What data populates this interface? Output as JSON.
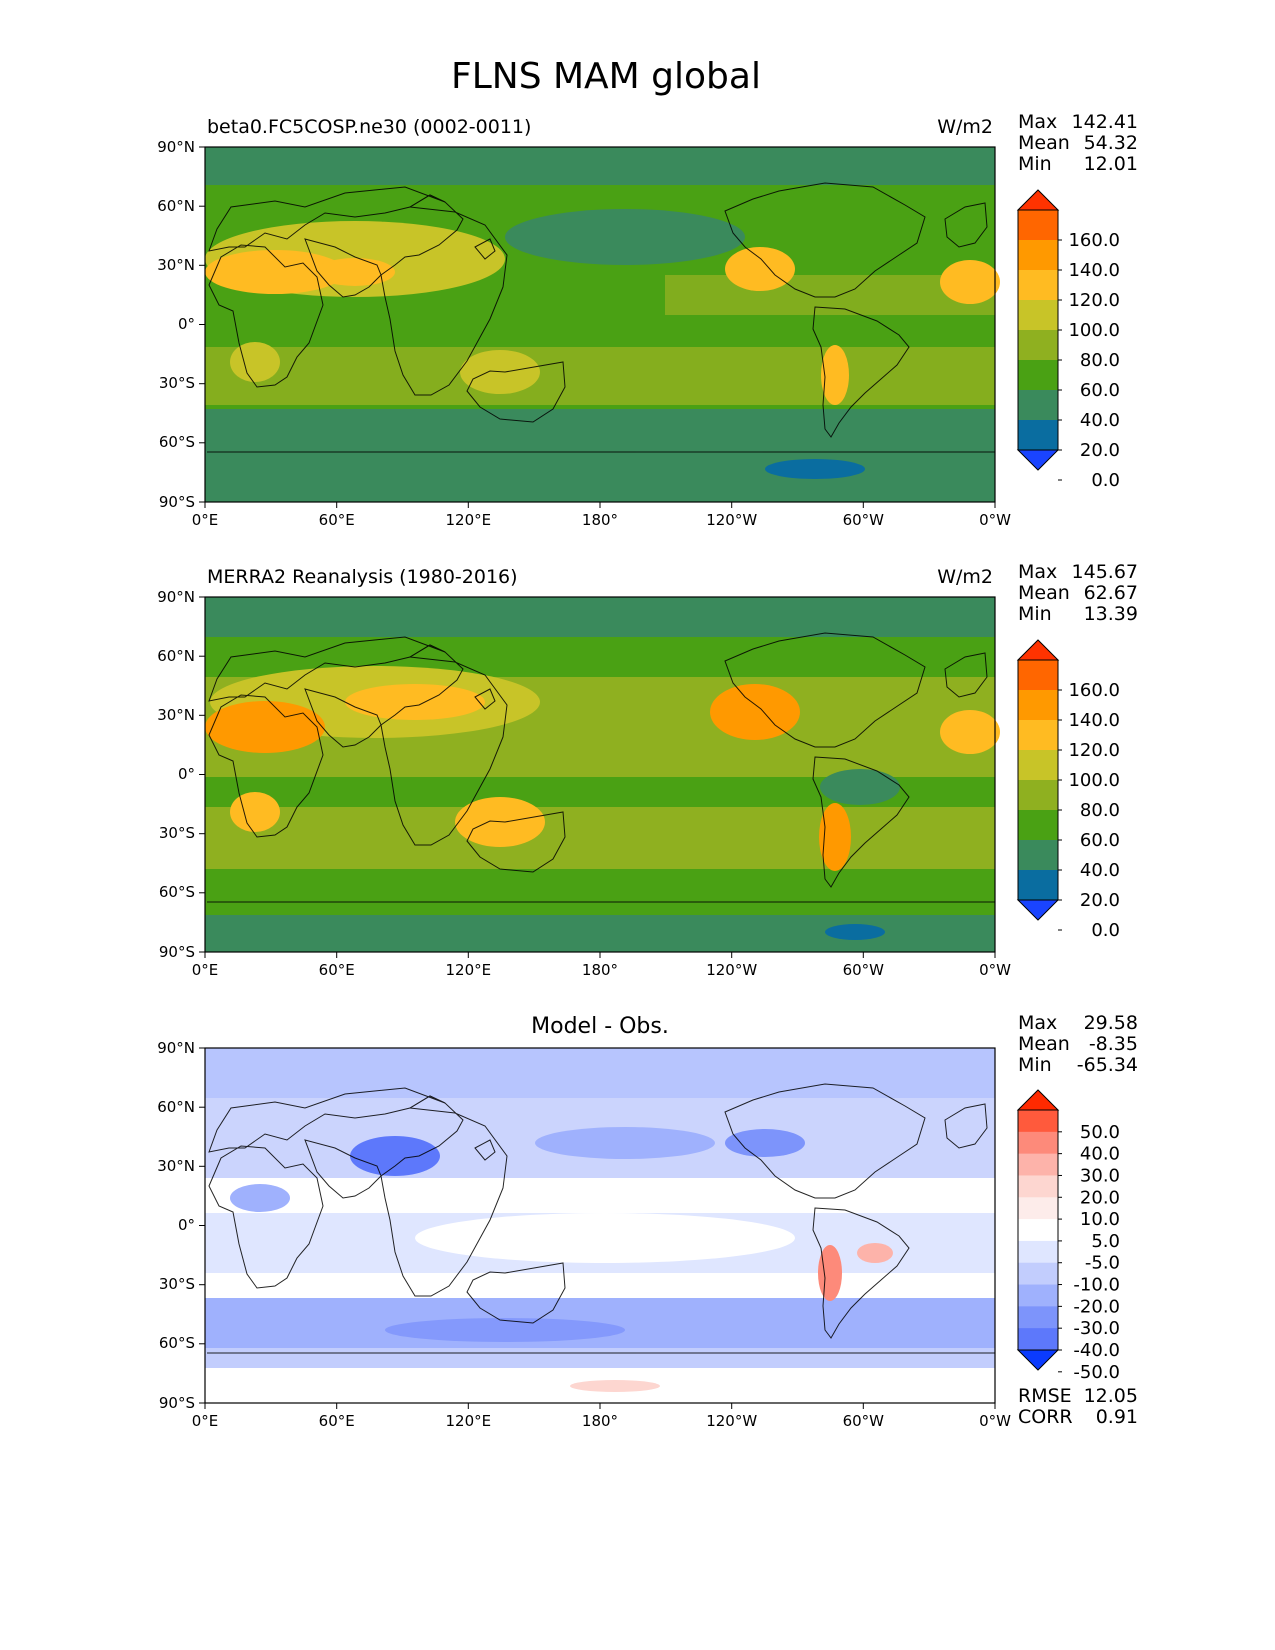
{
  "title": "FLNS MAM global",
  "axes": {
    "lat_labels": [
      "90°N",
      "60°N",
      "30°N",
      "0°",
      "30°S",
      "60°S",
      "90°S"
    ],
    "lon_labels": [
      "0°E",
      "60°E",
      "120°E",
      "180°",
      "120°W",
      "60°W",
      "0°W"
    ]
  },
  "panels": [
    {
      "id": "test",
      "title_left": "beta0.FC5COSP.ne30 (0002-0011)",
      "title_center": "",
      "units": "W/m2",
      "stats": [
        {
          "label": "Max",
          "value": "142.41"
        },
        {
          "label": "Mean",
          "value": "54.32"
        },
        {
          "label": "Min",
          "value": "12.01"
        }
      ],
      "extra_stats": []
    },
    {
      "id": "ref",
      "title_left": "MERRA2 Reanalysis (1980-2016)",
      "title_center": "",
      "units": "W/m2",
      "stats": [
        {
          "label": "Max",
          "value": "145.67"
        },
        {
          "label": "Mean",
          "value": "62.67"
        },
        {
          "label": "Min",
          "value": "13.39"
        }
      ],
      "extra_stats": []
    },
    {
      "id": "diff",
      "title_left": "",
      "title_center": "Model - Obs.",
      "units": "",
      "stats": [
        {
          "label": "Max",
          "value": "29.58"
        },
        {
          "label": "Mean",
          "value": "-8.35"
        },
        {
          "label": "Min",
          "value": "-65.34"
        }
      ],
      "extra_stats": [
        {
          "label": "RMSE",
          "value": "12.05"
        },
        {
          "label": "CORR",
          "value": "0.91"
        }
      ]
    }
  ],
  "colorbars": {
    "field": {
      "labels": [
        "160.0",
        "140.0",
        "120.0",
        "100.0",
        "80.0",
        "60.0",
        "40.0",
        "20.0",
        "0.0"
      ],
      "colors_top_to_bottom": [
        "#ff3300",
        "#ff6600",
        "#ff9900",
        "#ffbb22",
        "#c8c428",
        "#8fb020",
        "#4aa114",
        "#3a8a5c",
        "#0a6da0",
        "#1a44ff"
      ]
    },
    "diff": {
      "labels": [
        "50.0",
        "40.0",
        "30.0",
        "20.0",
        "10.0",
        "5.0",
        "-5.0",
        "-10.0",
        "-20.0",
        "-30.0",
        "-40.0",
        "-50.0"
      ],
      "colors_top_to_bottom": [
        "#ff2a00",
        "#ff5a3c",
        "#fd8a7a",
        "#fdb3aa",
        "#fdd6d0",
        "#fdecea",
        "#ffffff",
        "#dfe6ff",
        "#c2cdfd",
        "#9fb1fd",
        "#7d94fb",
        "#5d78fb",
        "#0b3bfe"
      ]
    }
  },
  "field_palette": {
    "very_low": "#0a6da0",
    "low": "#3a8a5c",
    "mid": "#4aa114",
    "mid_high": "#8fb020",
    "high": "#c8c428",
    "higher": "#ffbb22",
    "peak": "#ff9900"
  },
  "diff_palette": {
    "neutral": "#ffffff",
    "weak_neg": "#dfe6ff",
    "mod_neg": "#9fb1fd",
    "strong_neg": "#5d78fb",
    "weak_pos": "#fdd6d0",
    "mod_pos": "#fd8a7a"
  }
}
